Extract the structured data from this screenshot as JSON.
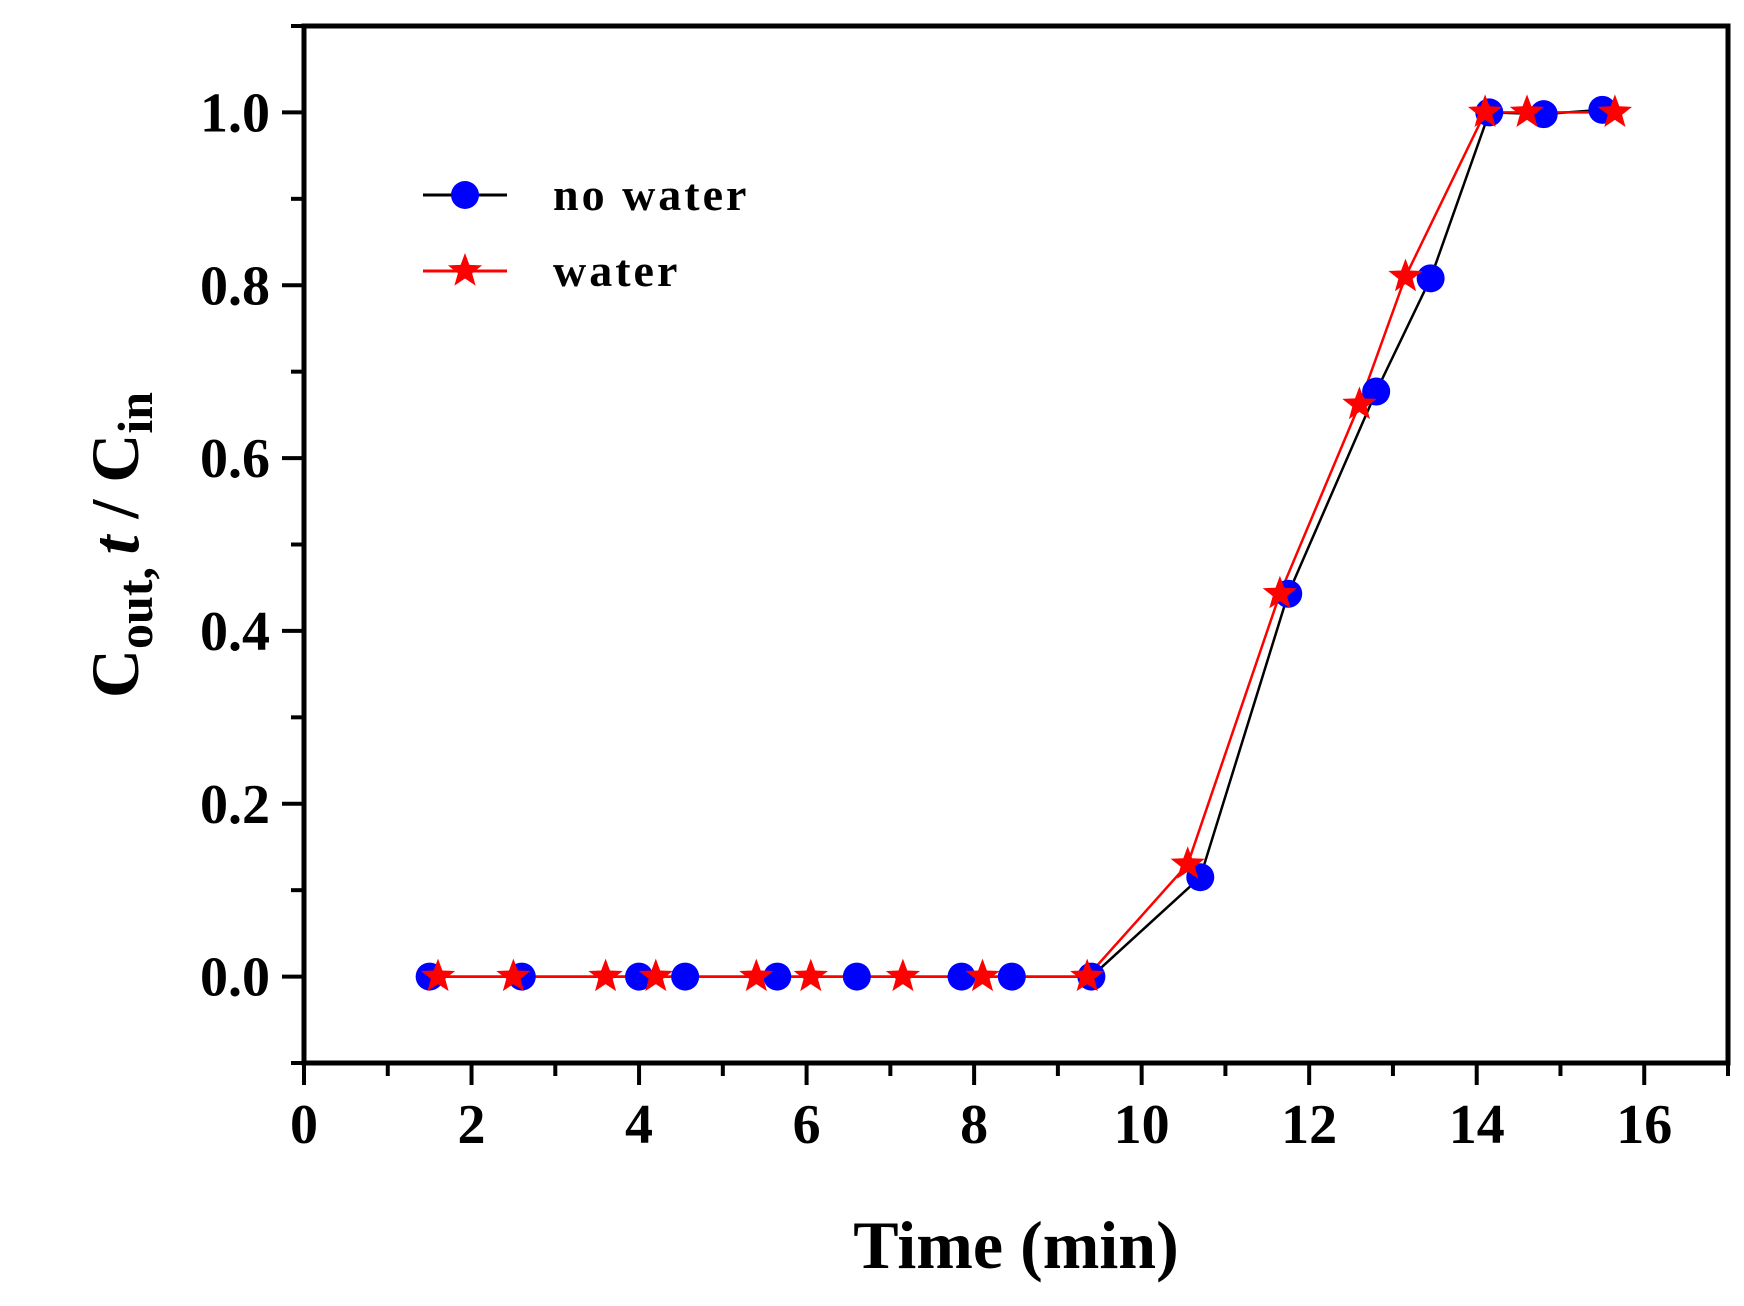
{
  "chart_data": {
    "type": "line",
    "title": "",
    "xlabel": "Time (min)",
    "ylabel": {
      "main": "C",
      "sub1": "out, ",
      "italic": "t",
      "slash": " / C",
      "sub2": "in"
    },
    "xlim": [
      0,
      17
    ],
    "ylim": [
      -0.1,
      1.1
    ],
    "xticks": [
      "0",
      "2",
      "4",
      "6",
      "8",
      "10",
      "12",
      "14",
      "16"
    ],
    "yticks": [
      "0.0",
      "0.2",
      "0.4",
      "0.6",
      "0.8",
      "1.0"
    ],
    "legend_position": "top-left",
    "series": [
      {
        "name": "no water",
        "color": "#000000",
        "marker_color": "#0000ff",
        "marker": "circle",
        "points": [
          [
            1.5,
            0.0
          ],
          [
            2.6,
            0.0
          ],
          [
            4.0,
            0.0
          ],
          [
            4.55,
            0.0
          ],
          [
            5.65,
            0.0
          ],
          [
            6.6,
            0.0
          ],
          [
            7.85,
            0.0
          ],
          [
            8.45,
            0.0
          ],
          [
            9.4,
            0.0
          ],
          [
            10.7,
            0.115
          ],
          [
            11.75,
            0.443
          ],
          [
            12.8,
            0.677
          ],
          [
            13.45,
            0.808
          ],
          [
            14.15,
            1.0
          ],
          [
            14.8,
            0.998
          ],
          [
            15.5,
            1.003
          ]
        ]
      },
      {
        "name": "water",
        "color": "#ff0000",
        "marker_color": "#ff0000",
        "marker": "star",
        "points": [
          [
            1.6,
            0.0
          ],
          [
            2.5,
            0.0
          ],
          [
            3.6,
            0.0
          ],
          [
            4.2,
            0.0
          ],
          [
            5.4,
            0.0
          ],
          [
            6.05,
            0.0
          ],
          [
            7.15,
            0.0
          ],
          [
            8.1,
            0.0
          ],
          [
            9.35,
            0.0
          ],
          [
            10.55,
            0.13
          ],
          [
            11.65,
            0.443
          ],
          [
            12.6,
            0.662
          ],
          [
            13.15,
            0.81
          ],
          [
            14.1,
            1.0
          ],
          [
            14.6,
            1.0
          ],
          [
            15.65,
            1.0
          ]
        ]
      }
    ]
  }
}
